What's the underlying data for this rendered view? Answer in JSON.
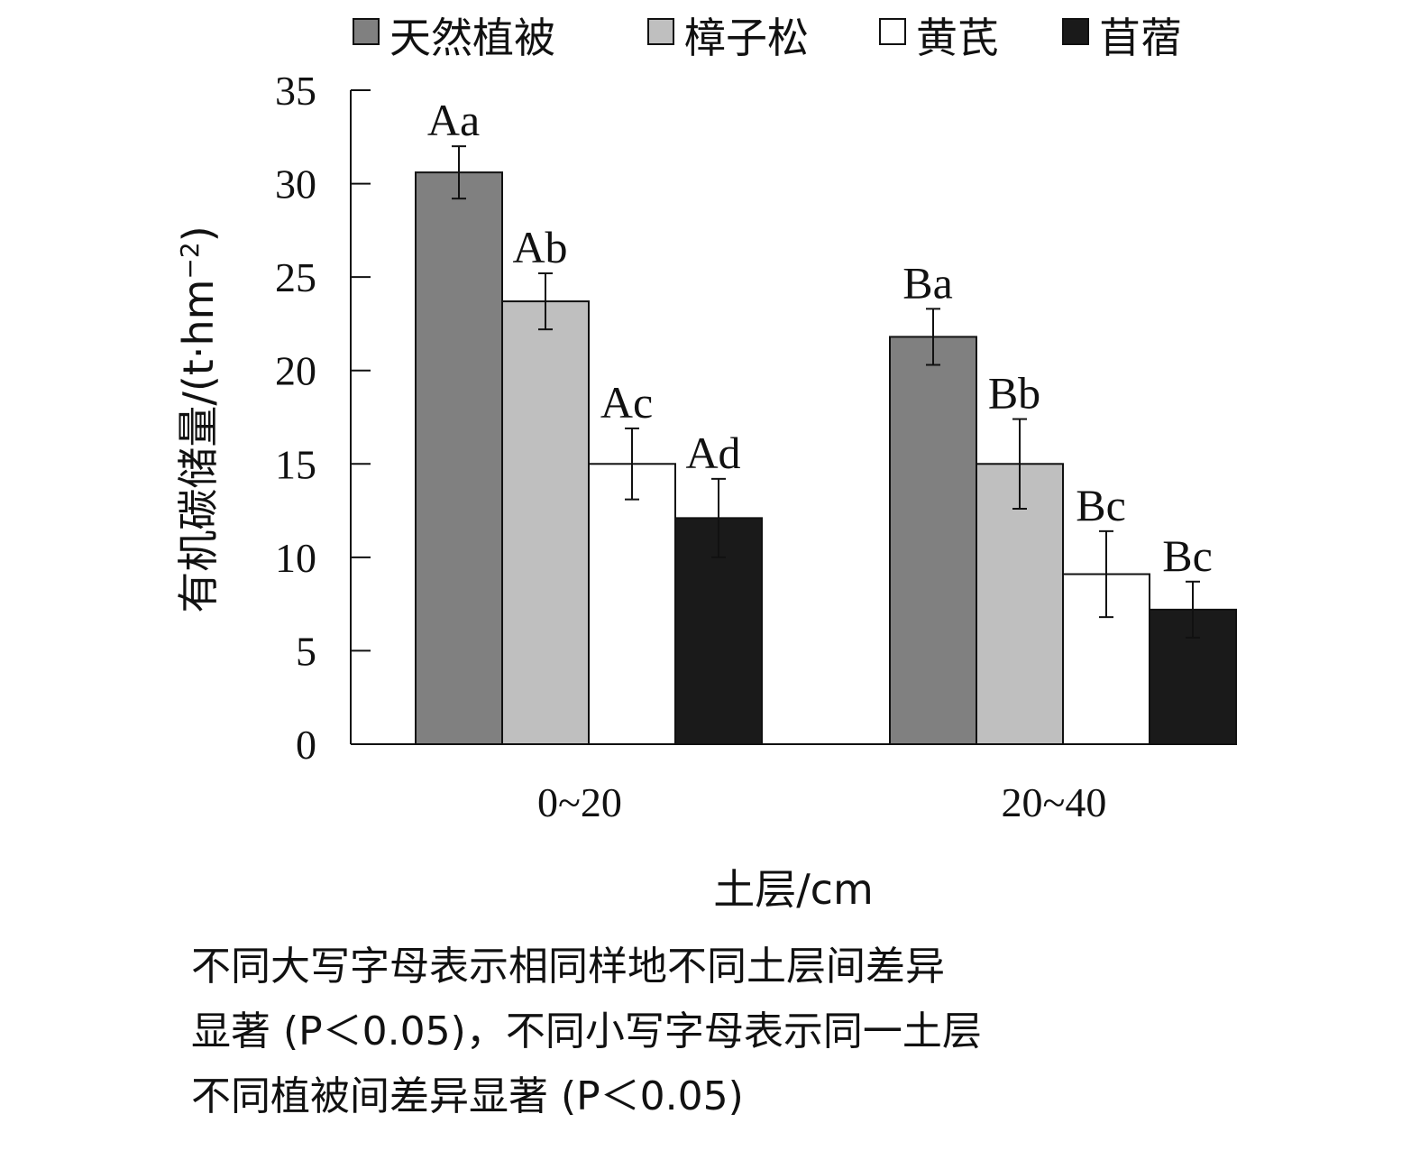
{
  "chart_data": {
    "type": "bar",
    "categories": [
      "0~20",
      "20~40"
    ],
    "series": [
      {
        "name": "天然植被",
        "color": "#808080",
        "values": [
          30.6,
          21.8
        ],
        "errors": [
          1.4,
          1.5
        ],
        "labels": [
          "Aa",
          "Ba"
        ]
      },
      {
        "name": "樟子松",
        "color": "#bfbfbf",
        "values": [
          23.7,
          15.0
        ],
        "errors": [
          1.5,
          2.4
        ],
        "labels": [
          "Ab",
          "Bb"
        ]
      },
      {
        "name": "黄芪",
        "color": "#ffffff",
        "values": [
          15.0,
          9.1
        ],
        "errors": [
          1.9,
          2.3
        ],
        "labels": [
          "Ac",
          "Bc"
        ]
      },
      {
        "name": "苜蓿",
        "color": "#1a1a1a",
        "values": [
          12.1,
          7.2
        ],
        "errors": [
          2.1,
          1.5
        ],
        "labels": [
          "Ad",
          "Bc"
        ]
      }
    ],
    "ylim": [
      0,
      35
    ],
    "yticks": [
      0,
      5,
      10,
      15,
      20,
      25,
      30,
      35
    ],
    "xlabel": "土层/cm",
    "ylabel_main": "有机碳储量/(t·hm",
    "ylabel_sup": "−2",
    "ylabel_end": ")",
    "legend_position": "top",
    "grid": false
  },
  "note": {
    "line1": "不同大写字母表示相同样地不同土层间差异",
    "line2": "显著 (P＜0.05)，不同小写字母表示同一土层",
    "line3": "不同植被间差异显著 (P＜0.05)"
  }
}
